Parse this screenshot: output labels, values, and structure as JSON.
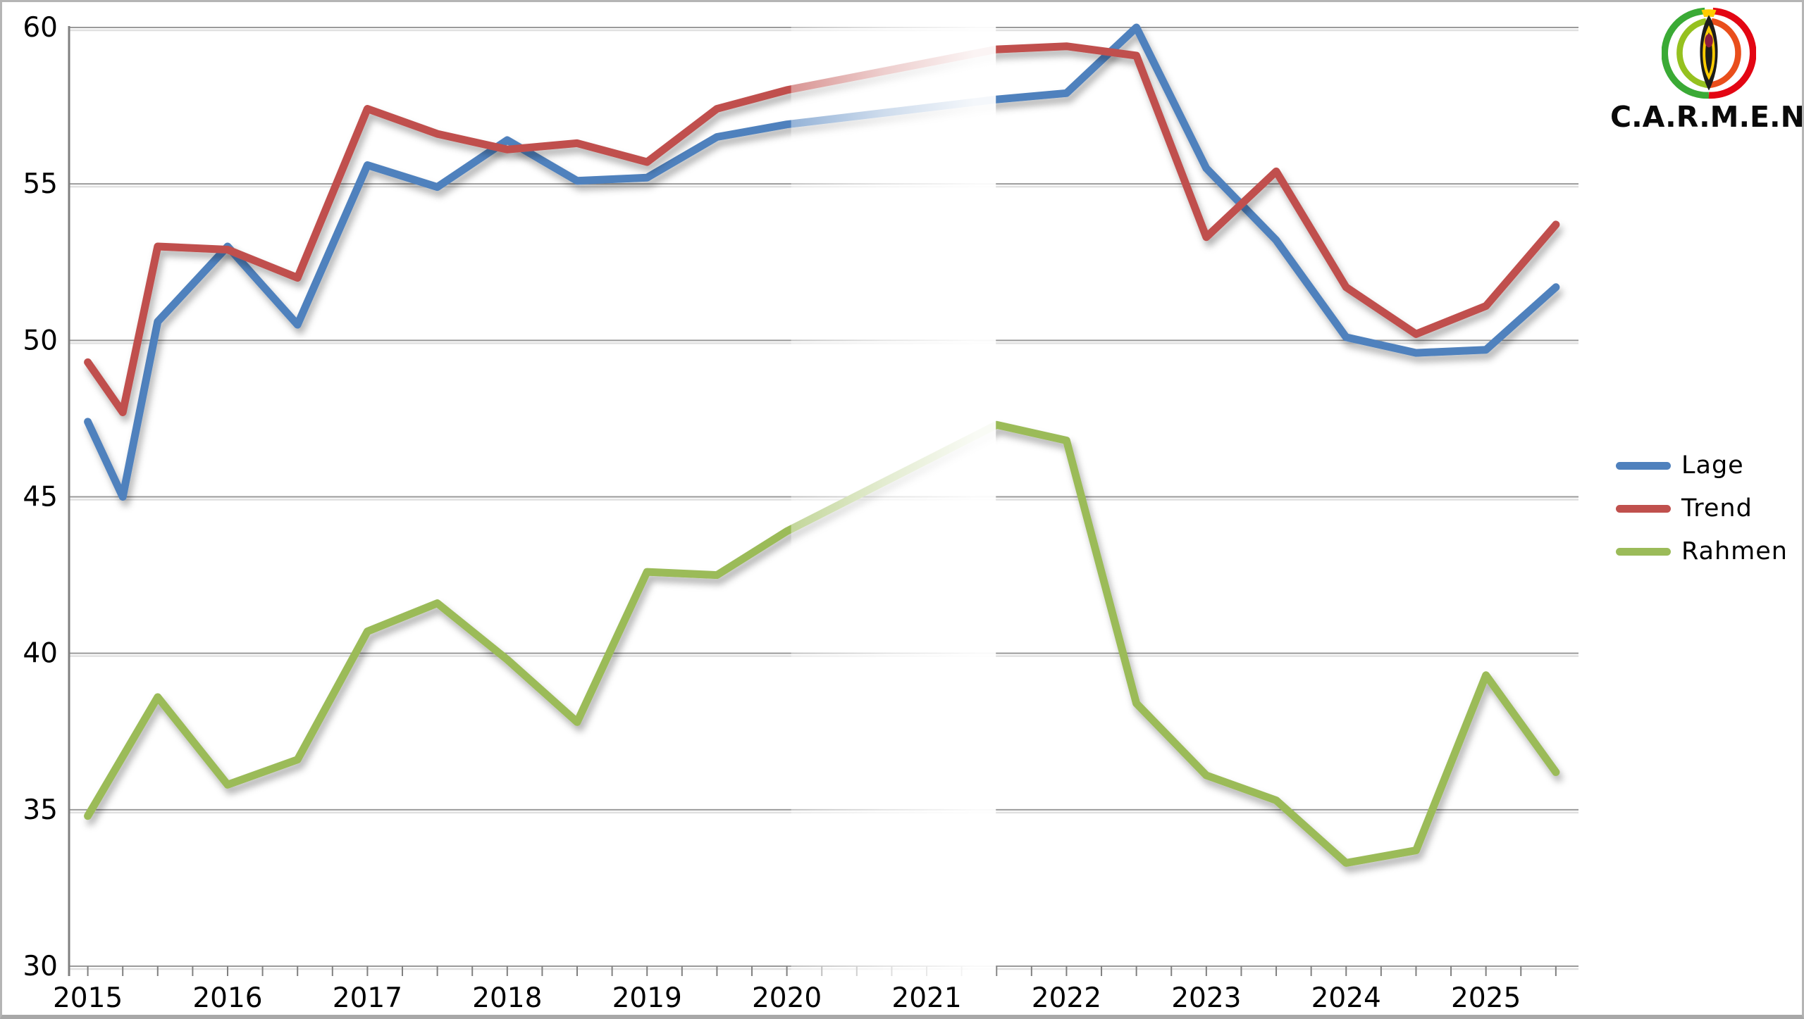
{
  "page": {
    "background": "#ffffff",
    "border_color": "#b5b5b5"
  },
  "logo": {
    "text": "C.A.R.M.E.N.",
    "emblem_colors": {
      "outer_green": "#3aaa35",
      "inner_green": "#95c11f",
      "outer_red": "#e30613",
      "inner_red": "#e94e1b",
      "yellow": "#ffcc00",
      "core_black": "#1d1d1b"
    }
  },
  "legend": [
    {
      "label": "Lage",
      "color": "#4f81bd"
    },
    {
      "label": "Trend",
      "color": "#c0504d"
    },
    {
      "label": "Rahmen",
      "color": "#9bbb59"
    }
  ],
  "chart_data": {
    "type": "line",
    "title": "",
    "xlabel": "",
    "ylabel": "",
    "xlim": [
      2014.866,
      2025.662
    ],
    "ylim": [
      30,
      60
    ],
    "y_ticks": [
      30,
      35,
      40,
      45,
      50,
      55,
      60
    ],
    "x_tick_labels": [
      "2015",
      "2016",
      "2017",
      "2018",
      "2019",
      "2020",
      "2021",
      "2022",
      "2023",
      "2024",
      "2025"
    ],
    "x_tick_years": [
      2015,
      2016,
      2017,
      2018,
      2019,
      2020,
      2021,
      2022,
      2023,
      2024,
      2025
    ],
    "minor_tick_step_years": 0.25,
    "grid": true,
    "legend_position": "right",
    "faded_interval": [
      2020.0,
      2021.5
    ],
    "line_width": 11,
    "gridline_color": "#9a9a9a",
    "axis_color": "#808080",
    "label_color": "#000000",
    "series": [
      {
        "name": "Lage",
        "color": "#4f81bd",
        "points": [
          [
            2015.0,
            47.4
          ],
          [
            2015.25,
            45.0
          ],
          [
            2015.5,
            50.6
          ],
          [
            2016.0,
            53.0
          ],
          [
            2016.5,
            50.5
          ],
          [
            2017.0,
            55.6
          ],
          [
            2017.5,
            54.9
          ],
          [
            2018.0,
            56.4
          ],
          [
            2018.5,
            55.1
          ],
          [
            2019.0,
            55.2
          ],
          [
            2019.5,
            56.5
          ],
          [
            2020.0,
            56.9
          ],
          [
            2021.5,
            57.7
          ],
          [
            2022.0,
            57.9
          ],
          [
            2022.5,
            60.0
          ],
          [
            2023.0,
            55.5
          ],
          [
            2023.5,
            53.2
          ],
          [
            2024.0,
            50.1
          ],
          [
            2024.5,
            49.6
          ],
          [
            2025.0,
            49.7
          ],
          [
            2025.5,
            51.7
          ]
        ]
      },
      {
        "name": "Trend",
        "color": "#c0504d",
        "points": [
          [
            2015.0,
            49.3
          ],
          [
            2015.25,
            47.7
          ],
          [
            2015.5,
            53.0
          ],
          [
            2016.0,
            52.9
          ],
          [
            2016.5,
            52.0
          ],
          [
            2017.0,
            57.4
          ],
          [
            2017.5,
            56.6
          ],
          [
            2018.0,
            56.1
          ],
          [
            2018.5,
            56.3
          ],
          [
            2019.0,
            55.7
          ],
          [
            2019.5,
            57.4
          ],
          [
            2020.0,
            58.0
          ],
          [
            2021.5,
            59.3
          ],
          [
            2022.0,
            59.4
          ],
          [
            2022.5,
            59.1
          ],
          [
            2023.0,
            53.3
          ],
          [
            2023.5,
            55.4
          ],
          [
            2024.0,
            51.7
          ],
          [
            2024.5,
            50.2
          ],
          [
            2025.0,
            51.1
          ],
          [
            2025.5,
            53.7
          ]
        ]
      },
      {
        "name": "Rahmen",
        "color": "#9bbb59",
        "points": [
          [
            2015.0,
            34.8
          ],
          [
            2015.5,
            38.6
          ],
          [
            2016.0,
            35.8
          ],
          [
            2016.5,
            36.6
          ],
          [
            2017.0,
            40.7
          ],
          [
            2017.5,
            41.6
          ],
          [
            2018.0,
            39.8
          ],
          [
            2018.5,
            37.8
          ],
          [
            2019.0,
            42.6
          ],
          [
            2019.5,
            42.5
          ],
          [
            2020.0,
            43.9
          ],
          [
            2021.5,
            47.3
          ],
          [
            2022.0,
            46.8
          ],
          [
            2022.5,
            38.4
          ],
          [
            2023.0,
            36.1
          ],
          [
            2023.5,
            35.3
          ],
          [
            2024.0,
            33.3
          ],
          [
            2024.5,
            33.7
          ],
          [
            2025.0,
            39.3
          ],
          [
            2025.5,
            36.2
          ]
        ]
      }
    ]
  }
}
